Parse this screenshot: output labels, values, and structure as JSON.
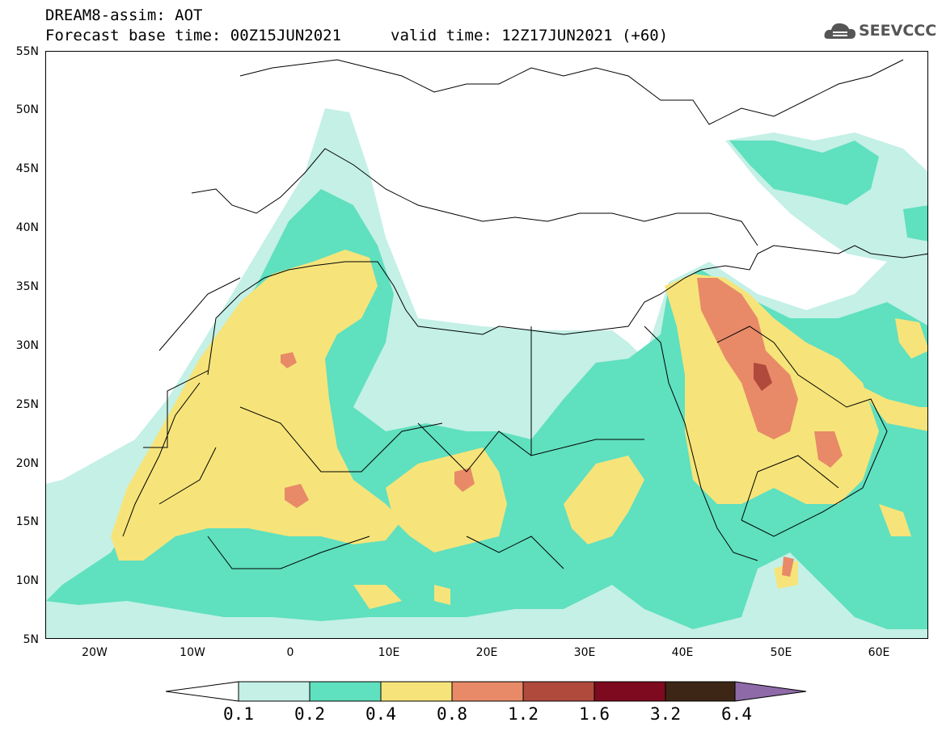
{
  "header": {
    "title": "DREAM8-assim: AOT",
    "base_time": "Forecast base time: 00Z15JUN2021",
    "valid_time": "valid time: 12Z17JUN2021 (+60)",
    "logo_text": "SEEVCCC"
  },
  "axes": {
    "lat_labels": [
      "55N",
      "50N",
      "45N",
      "40N",
      "35N",
      "30N",
      "25N",
      "20N",
      "15N",
      "10N",
      "5N"
    ],
    "lon_labels": [
      "20W",
      "10W",
      "0",
      "10E",
      "20E",
      "30E",
      "40E",
      "50E",
      "60E"
    ]
  },
  "colorbar": {
    "labels": [
      "0.1",
      "0.2",
      "0.4",
      "0.8",
      "1.2",
      "1.6",
      "3.2",
      "6.4"
    ],
    "colors": [
      "#ffffff",
      "#c4f0e6",
      "#5fe0bf",
      "#f6e47a",
      "#e88a68",
      "#b04a3c",
      "#7d0a1e",
      "#3d2615",
      "#8e6aa8"
    ]
  }
}
